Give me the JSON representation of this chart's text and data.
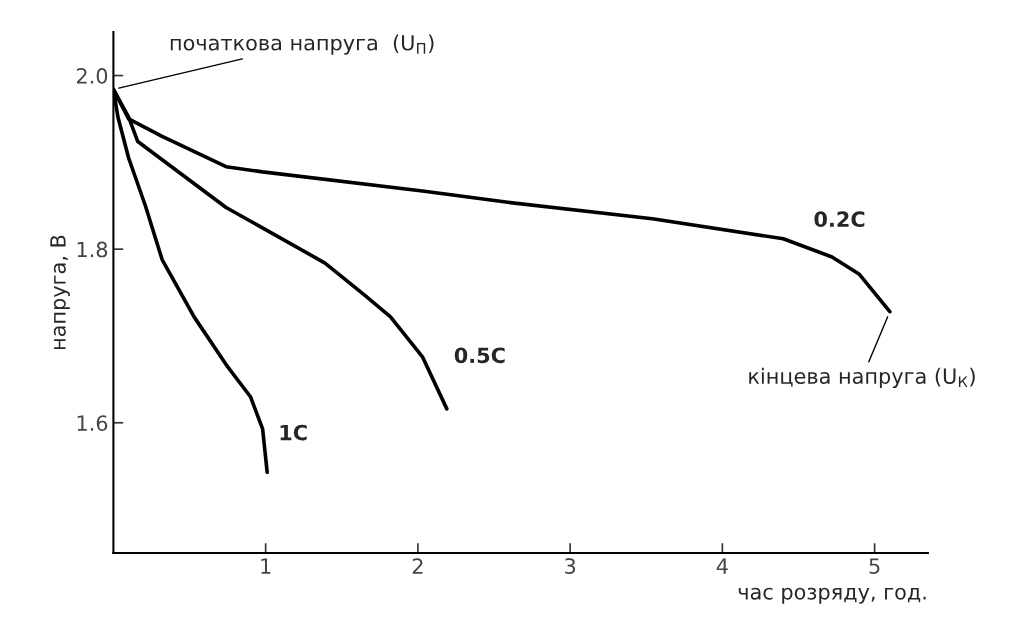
{
  "chart_data": {
    "type": "line",
    "xlabel": "час розряду, год.",
    "ylabel": "напруга, В",
    "xlim": [
      0,
      5.35
    ],
    "ylim": [
      1.45,
      2.05
    ],
    "xticks": [
      1,
      2,
      3,
      4,
      5
    ],
    "yticks": [
      {
        "value": 1.6,
        "label": "1.6"
      },
      {
        "value": 1.8,
        "label": "1.8"
      },
      {
        "value": 2.0,
        "label": "2.0"
      }
    ],
    "grid": false,
    "legend": false,
    "marker": "none",
    "line_style": "solid",
    "series": [
      {
        "name": "0.2C",
        "color": "#000000",
        "x": [
          0,
          0.1,
          0.32,
          0.74,
          0.98,
          2.03,
          2.59,
          3.54,
          4.4,
          4.72,
          4.9,
          5.1
        ],
        "values": [
          1.984,
          1.95,
          1.93,
          1.895,
          1.889,
          1.867,
          1.854,
          1.835,
          1.812,
          1.791,
          1.771,
          1.728
        ]
      },
      {
        "name": "0.5C",
        "color": "#000000",
        "x": [
          0,
          0.1,
          0.16,
          0.74,
          1.39,
          1.65,
          1.82,
          2.03,
          2.19
        ],
        "values": [
          1.984,
          1.952,
          1.924,
          1.848,
          1.784,
          1.747,
          1.722,
          1.676,
          1.616
        ]
      },
      {
        "name": "1C",
        "color": "#000000",
        "x": [
          0,
          0.03,
          0.1,
          0.21,
          0.32,
          0.53,
          0.74,
          0.9,
          0.98,
          1.01
        ],
        "values": [
          1.984,
          1.952,
          1.905,
          1.85,
          1.788,
          1.722,
          1.667,
          1.63,
          1.593,
          1.543
        ]
      }
    ],
    "annotations": [
      {
        "text": "початкова напруга  (U$_{П}$)",
        "x": 0,
        "y": 1.984
      },
      {
        "text": "кінцева напруга (U$_{К}$)",
        "x": 5.1,
        "y": 1.728
      }
    ]
  }
}
